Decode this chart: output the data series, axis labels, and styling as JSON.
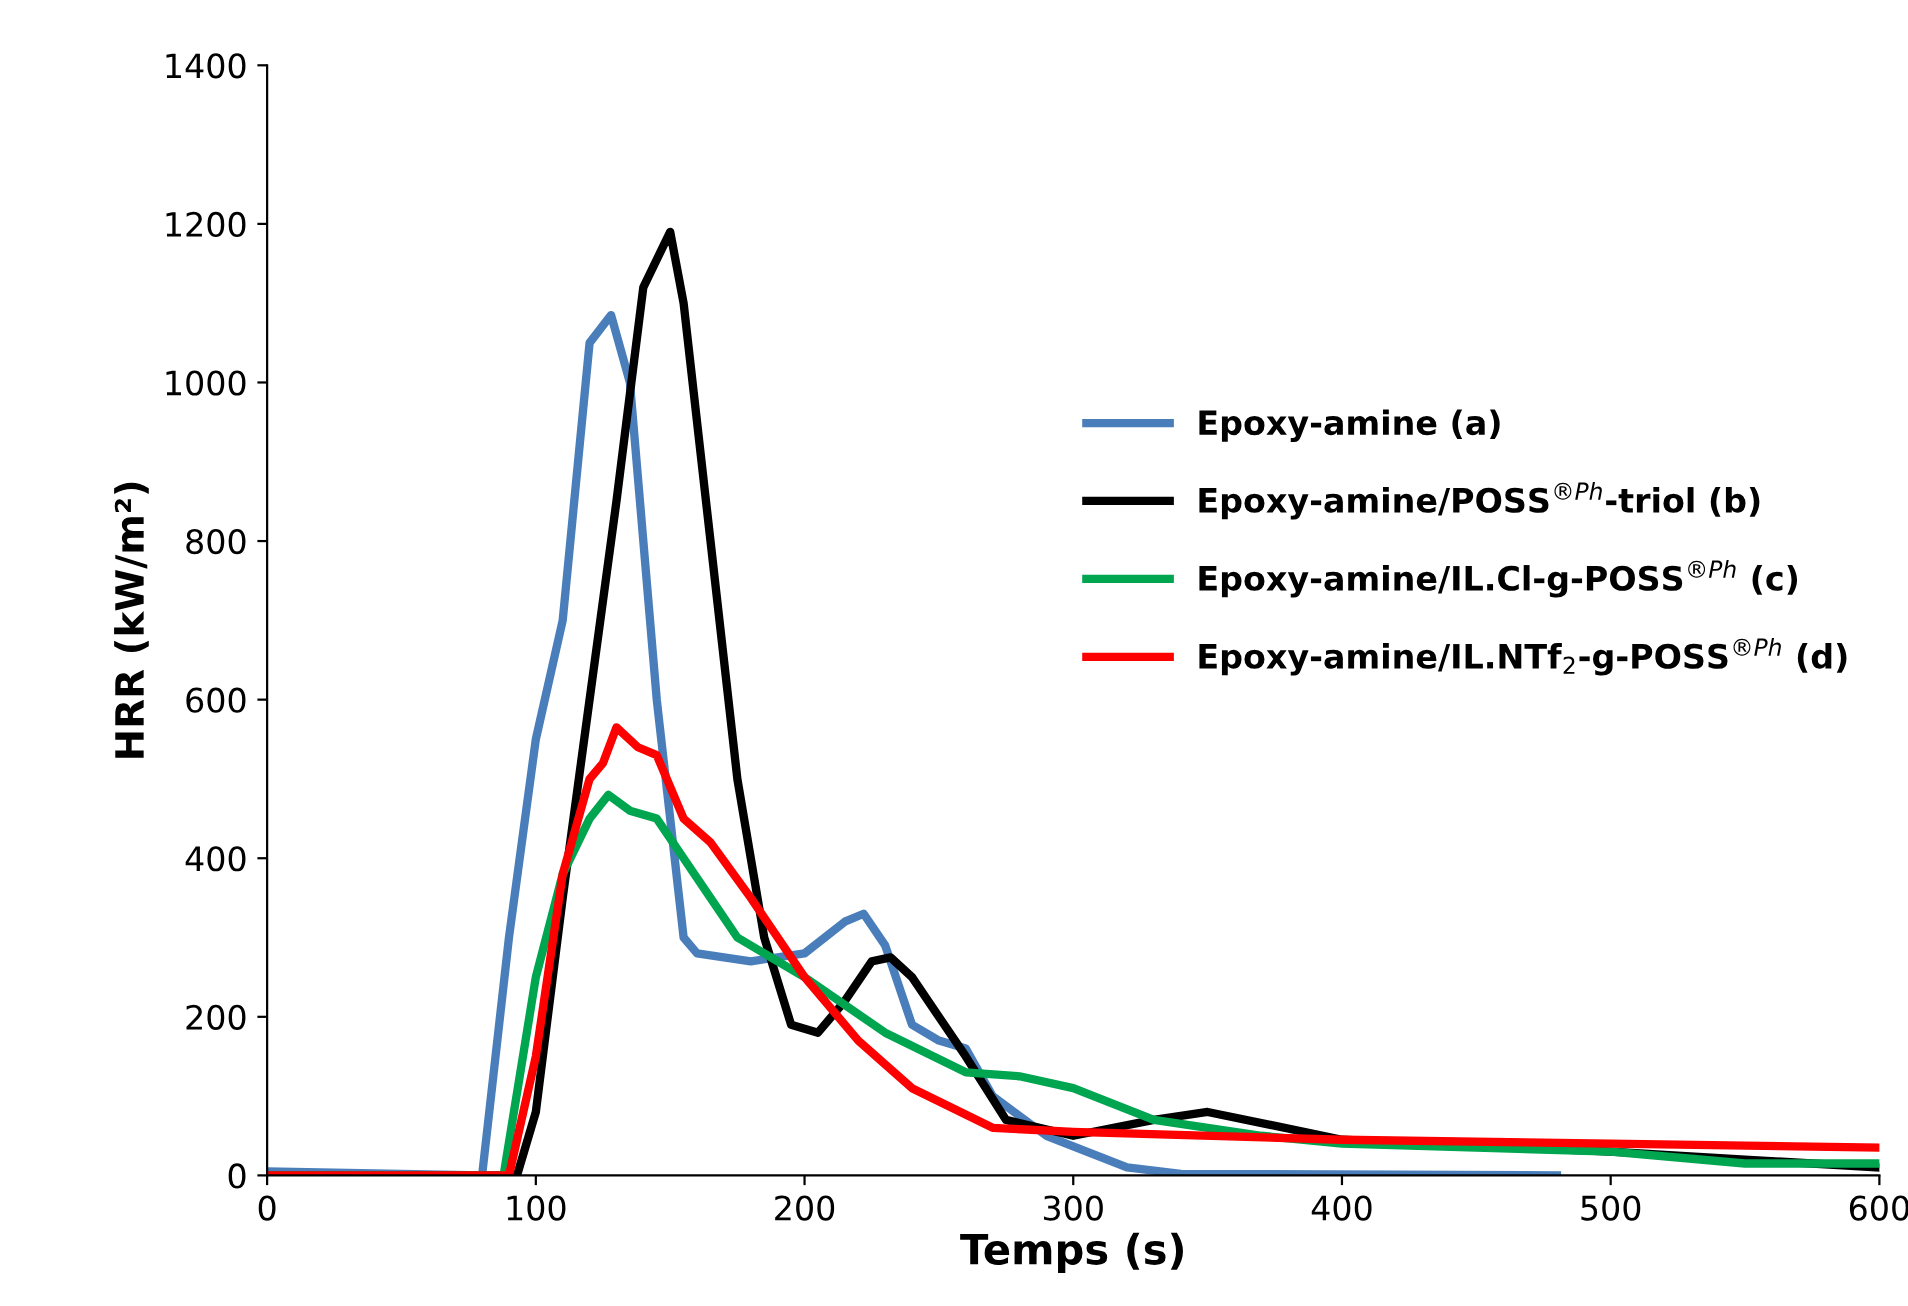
{
  "chart_data": {
    "type": "line",
    "xlabel": "Temps (s)",
    "ylabel": "HRR (kW/m²)",
    "xlim": [
      0,
      600
    ],
    "xticks": [
      0,
      100,
      200,
      300,
      400,
      500,
      600
    ],
    "ylim": [
      0,
      1400
    ],
    "yticks": [
      0,
      200,
      400,
      600,
      800,
      1000,
      1200,
      1400
    ],
    "grid": false,
    "legend": "right",
    "line_style": "solid",
    "marker": "none",
    "series": [
      {
        "name": "Epoxy-amine (a)",
        "color": "#4a7ebb",
        "x": [
          0,
          80,
          90,
          100,
          110,
          120,
          128,
          135,
          145,
          155,
          160,
          180,
          200,
          215,
          222,
          230,
          240,
          250,
          260,
          270,
          290,
          320,
          340,
          480
        ],
        "values": [
          5,
          0,
          300,
          550,
          700,
          1050,
          1085,
          1000,
          600,
          300,
          280,
          270,
          280,
          320,
          330,
          290,
          190,
          170,
          160,
          100,
          50,
          10,
          2,
          0
        ]
      },
      {
        "name": "Epoxy-amine/POSS$^{®Ph}$-triol (b)",
        "color": "#000000",
        "x": [
          0,
          93,
          100,
          110,
          120,
          130,
          140,
          150,
          155,
          165,
          175,
          185,
          195,
          205,
          215,
          225,
          232,
          240,
          260,
          275,
          300,
          330,
          350,
          400,
          500,
          550,
          600
        ],
        "values": [
          0,
          0,
          80,
          350,
          600,
          850,
          1120,
          1190,
          1100,
          800,
          500,
          300,
          190,
          180,
          220,
          270,
          275,
          250,
          150,
          70,
          50,
          70,
          80,
          45,
          30,
          20,
          10
        ]
      },
      {
        "name": "Epoxy-amine/IL.Cl-g-POSS$^{®Ph}$ (c)",
        "color": "#00a550",
        "x": [
          0,
          88,
          100,
          110,
          120,
          127,
          135,
          145,
          155,
          165,
          175,
          200,
          230,
          260,
          280,
          300,
          330,
          370,
          400,
          450,
          500,
          550,
          600
        ],
        "values": [
          0,
          0,
          250,
          380,
          450,
          480,
          460,
          450,
          400,
          350,
          300,
          250,
          180,
          130,
          125,
          110,
          70,
          50,
          40,
          35,
          30,
          15,
          15
        ]
      },
      {
        "name": "Epoxy-amine/IL.NTf$_{2}$-g-POSS$^{®Ph}$ (d)",
        "color": "#ff0000",
        "x": [
          0,
          90,
          100,
          110,
          120,
          125,
          130,
          138,
          145,
          155,
          165,
          180,
          200,
          220,
          240,
          270,
          300,
          400,
          500,
          600
        ],
        "values": [
          0,
          0,
          150,
          380,
          500,
          520,
          565,
          540,
          530,
          450,
          420,
          350,
          250,
          170,
          110,
          60,
          55,
          45,
          40,
          35
        ]
      }
    ]
  }
}
